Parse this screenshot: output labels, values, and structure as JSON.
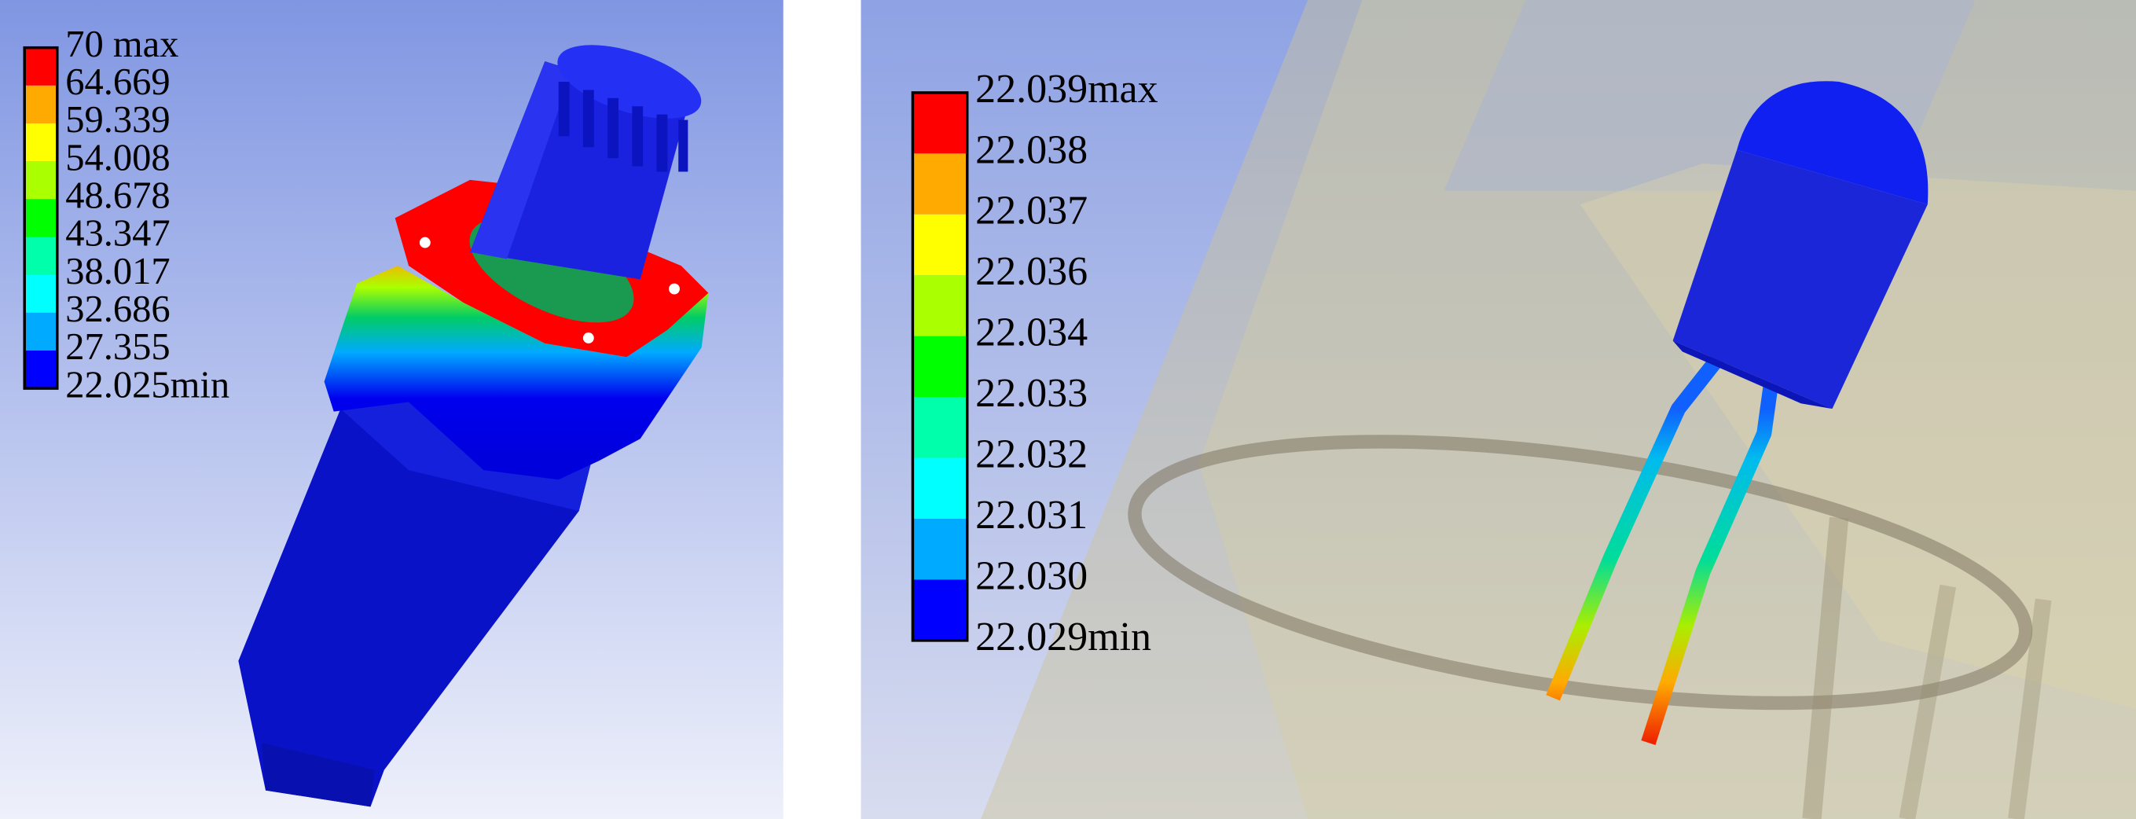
{
  "panels": [
    {
      "legend": {
        "labels": [
          "70 max",
          "64.669",
          "59.339",
          "54.008",
          "48.678",
          "43.347",
          "38.017",
          "32.686",
          "27.355",
          "22.025min"
        ],
        "colors": [
          "#ff0000",
          "#ffaa00",
          "#ffff00",
          "#aaff00",
          "#00ff00",
          "#00ffaa",
          "#00ffff",
          "#00aaff",
          "#0000ff"
        ]
      }
    },
    {
      "legend": {
        "labels": [
          "22.039max",
          "22.038",
          "22.037",
          "22.036",
          "22.034",
          "22.033",
          "22.032",
          "22.031",
          "22.030",
          "22.029min"
        ],
        "colors": [
          "#ff0000",
          "#ffaa00",
          "#ffff00",
          "#aaff00",
          "#00ff00",
          "#00ffaa",
          "#00ffff",
          "#00aaff",
          "#0000ff"
        ]
      }
    }
  ]
}
